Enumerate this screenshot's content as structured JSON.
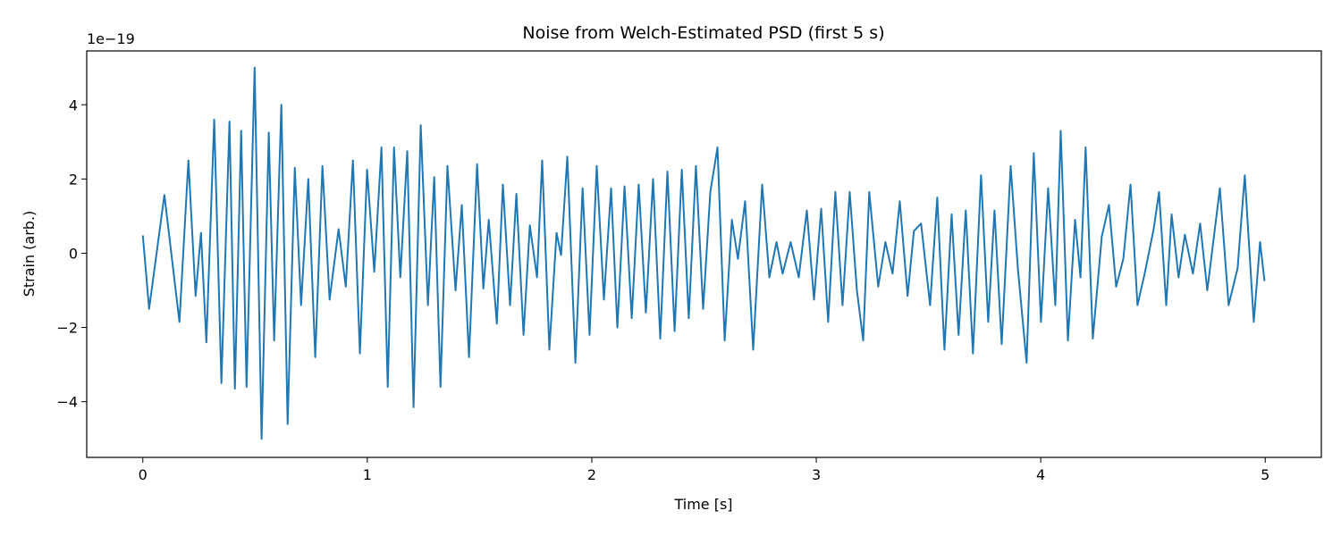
{
  "chart_data": {
    "type": "line",
    "title": "Noise from Welch-Estimated PSD (first 5 s)",
    "x_label": "Time [s]",
    "y_label": "Strain (arb.)",
    "y_offset_text": "1e−19",
    "xlim": [
      -0.25,
      5.25
    ],
    "ylim": [
      -5.5,
      5.45
    ],
    "xticks": [
      0,
      1,
      2,
      3,
      4,
      5
    ],
    "yticks": [
      {
        "value": -4,
        "label": "−4"
      },
      {
        "value": -2,
        "label": "−2"
      },
      0,
      2,
      4
    ],
    "grid": false,
    "x": [
      0,
      0.028,
      0.096,
      0.163,
      0.203,
      0.235,
      0.259,
      0.283,
      0.318,
      0.35,
      0.386,
      0.41,
      0.438,
      0.462,
      0.498,
      0.529,
      0.561,
      0.585,
      0.617,
      0.645,
      0.677,
      0.705,
      0.737,
      0.768,
      0.8,
      0.832,
      0.872,
      0.904,
      0.936,
      0.967,
      0.999,
      1.031,
      1.063,
      1.091,
      1.119,
      1.147,
      1.178,
      1.206,
      1.238,
      1.27,
      1.298,
      1.326,
      1.357,
      1.393,
      1.421,
      1.453,
      1.489,
      1.517,
      1.541,
      1.577,
      1.604,
      1.636,
      1.664,
      1.696,
      1.724,
      1.756,
      1.779,
      1.811,
      1.843,
      1.863,
      1.891,
      1.927,
      1.959,
      1.99,
      2.022,
      2.054,
      2.086,
      2.114,
      2.146,
      2.178,
      2.209,
      2.241,
      2.273,
      2.305,
      2.337,
      2.369,
      2.401,
      2.432,
      2.464,
      2.496,
      2.528,
      2.56,
      2.592,
      2.624,
      2.651,
      2.683,
      2.719,
      2.759,
      2.791,
      2.823,
      2.85,
      2.886,
      2.922,
      2.958,
      2.99,
      3.022,
      3.053,
      3.085,
      3.117,
      3.149,
      3.181,
      3.209,
      3.236,
      3.276,
      3.308,
      3.34,
      3.372,
      3.407,
      3.435,
      3.467,
      3.507,
      3.539,
      3.571,
      3.603,
      3.634,
      3.666,
      3.698,
      3.734,
      3.766,
      3.794,
      3.826,
      3.866,
      3.898,
      3.937,
      3.969,
      4.001,
      4.033,
      4.065,
      4.089,
      4.121,
      4.153,
      4.177,
      4.2,
      4.232,
      4.272,
      4.304,
      4.336,
      4.368,
      4.4,
      4.431,
      4.463,
      4.503,
      4.527,
      4.559,
      4.583,
      4.614,
      4.642,
      4.678,
      4.71,
      4.742,
      4.798,
      4.837,
      4.877,
      4.909,
      4.949,
      4.977,
      4.997
    ],
    "series": [
      {
        "color": "#1f77b4",
        "values": [
          0.48,
          -1.5,
          1.57,
          -1.85,
          2.5,
          -1.15,
          0.55,
          -2.4,
          3.6,
          -3.5,
          3.55,
          -3.65,
          3.3,
          -3.6,
          5.0,
          -5.0,
          3.25,
          -2.35,
          4.0,
          -4.6,
          2.3,
          -1.4,
          2.0,
          -2.8,
          2.35,
          -1.25,
          0.65,
          -0.9,
          2.5,
          -2.7,
          2.25,
          -0.5,
          2.85,
          -3.6,
          2.85,
          -0.65,
          2.75,
          -4.15,
          3.45,
          -1.4,
          2.05,
          -3.6,
          2.35,
          -1.0,
          1.3,
          -2.8,
          2.4,
          -0.95,
          0.9,
          -1.9,
          1.85,
          -1.4,
          1.6,
          -2.2,
          0.75,
          -0.65,
          2.5,
          -2.6,
          0.55,
          -0.05,
          2.6,
          -2.95,
          1.75,
          -2.2,
          2.35,
          -1.25,
          1.75,
          -2.0,
          1.8,
          -1.75,
          1.85,
          -1.6,
          2.0,
          -2.3,
          2.2,
          -2.1,
          2.25,
          -1.75,
          2.35,
          -1.5,
          1.65,
          2.85,
          -2.35,
          0.9,
          -0.15,
          1.4,
          -2.6,
          1.85,
          -0.65,
          0.3,
          -0.55,
          0.3,
          -0.65,
          1.15,
          -1.25,
          1.2,
          -1.85,
          1.65,
          -1.4,
          1.65,
          -1.0,
          -2.35,
          1.65,
          -0.9,
          0.3,
          -0.55,
          1.4,
          -1.15,
          0.6,
          0.8,
          -1.4,
          1.5,
          -2.6,
          1.05,
          -2.2,
          1.15,
          -2.7,
          2.1,
          -1.85,
          1.15,
          -2.45,
          2.35,
          -0.4,
          -2.95,
          2.7,
          -1.85,
          1.75,
          -1.4,
          3.3,
          -2.35,
          0.9,
          -0.65,
          2.85,
          -2.3,
          0.45,
          1.3,
          -0.9,
          -0.15,
          1.85,
          -1.4,
          -0.55,
          0.65,
          1.65,
          -1.4,
          1.05,
          -0.65,
          0.5,
          -0.55,
          0.8,
          -1.0,
          1.75,
          -1.4,
          -0.4,
          2.1,
          -1.85,
          0.3,
          -0.75
        ]
      }
    ]
  }
}
